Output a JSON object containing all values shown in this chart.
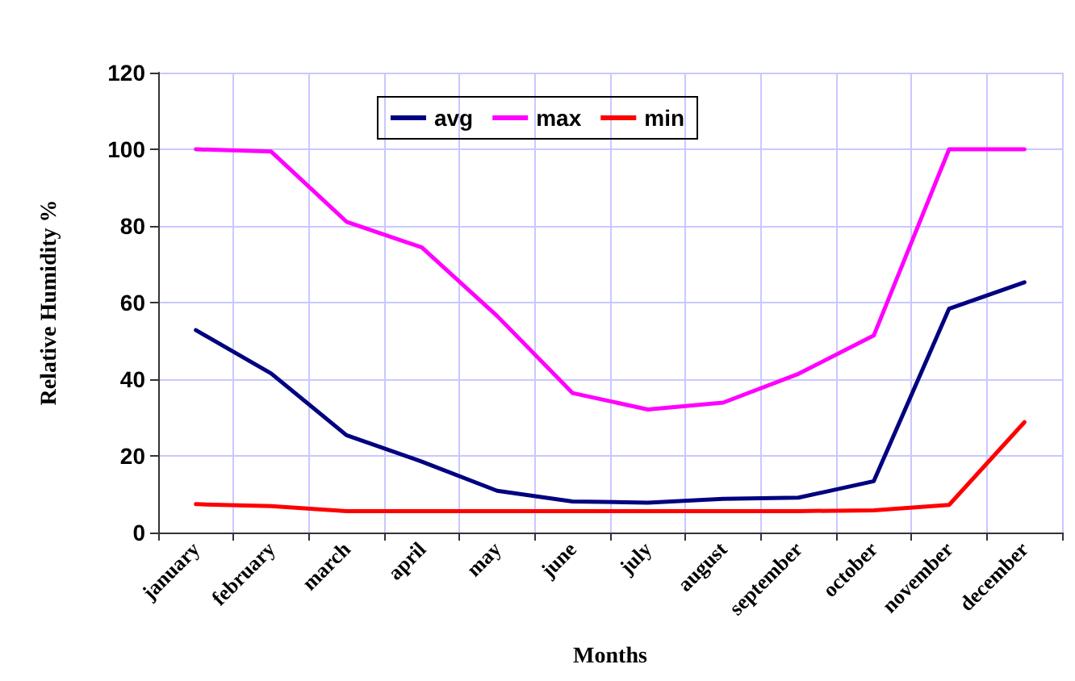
{
  "chart_data": {
    "type": "line",
    "xlabel": "Months",
    "ylabel": "Relative Humidity %",
    "categories": [
      "january",
      "february",
      "march",
      "april",
      "may",
      "june",
      "july",
      "august",
      "september",
      "october",
      "november",
      "december"
    ],
    "series": [
      {
        "name": "avg",
        "color": "#000080",
        "values": [
          52.8,
          41.5,
          25.4,
          18.5,
          10.9,
          8.1,
          7.8,
          8.8,
          9.1,
          13.4,
          58.4,
          65.3
        ]
      },
      {
        "name": "max",
        "color": "#ff00ff",
        "values": [
          100,
          99.4,
          81.1,
          74.4,
          56.5,
          36.4,
          32.1,
          33.9,
          41.4,
          51.4,
          100,
          100
        ]
      },
      {
        "name": "min",
        "color": "#ff0000",
        "values": [
          7.4,
          6.9,
          5.6,
          5.6,
          5.6,
          5.6,
          5.6,
          5.6,
          5.6,
          5.8,
          7.2,
          28.8
        ]
      }
    ],
    "ylim": [
      0,
      120
    ],
    "yticks": [
      0,
      20,
      40,
      60,
      80,
      100,
      120
    ],
    "grid": true,
    "legend": "top",
    "marker": "none",
    "line_style": "solid"
  }
}
